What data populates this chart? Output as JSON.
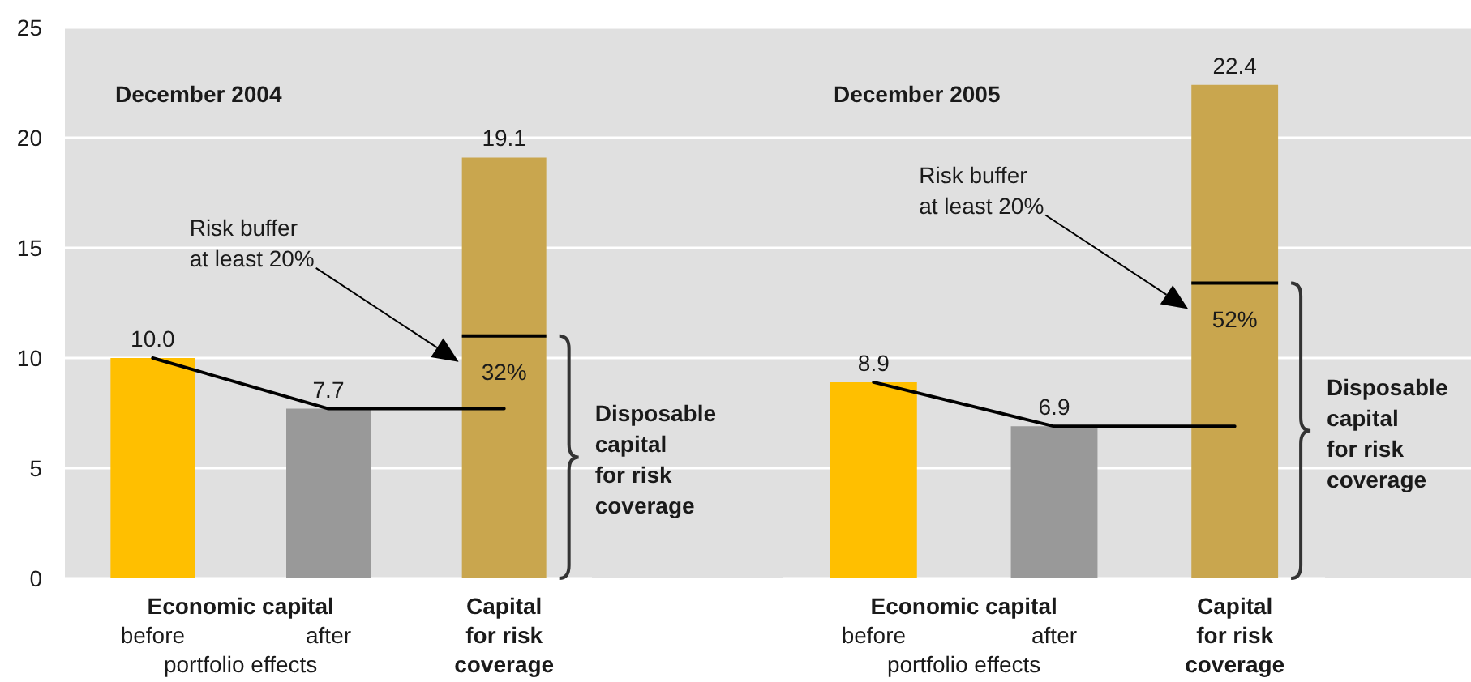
{
  "chart_data": [
    {
      "type": "bar",
      "title": "December 2004",
      "categories": [
        "before",
        "after",
        "Capital\nfor risk\ncoverage"
      ],
      "series": [
        {
          "colors": [
            "#ffbf00",
            "#999999",
            "#c9a64e"
          ],
          "values": [
            10.0,
            7.7,
            19.1
          ],
          "value_labels": [
            "10.0",
            "7.7",
            "19.1"
          ]
        },
        {
          "type": "line",
          "color": "#000000",
          "values": [
            10.0,
            7.7,
            7.7
          ]
        }
      ],
      "ylim": [
        0,
        25
      ],
      "yticks": [
        0,
        5,
        10,
        15,
        20,
        25
      ],
      "grid": "y",
      "marker": "none",
      "line_style": "solid",
      "ref_lines": [
        {
          "axis": "y",
          "value": 11.0,
          "color": "#000000"
        }
      ],
      "annotations": [
        "Economic capital",
        "portfolio effects",
        "Risk buffer\nat least 20%",
        "32%",
        "Disposable\ncapital\nfor risk\ncoverage"
      ]
    },
    {
      "type": "bar",
      "title": "December 2005",
      "categories": [
        "before",
        "after",
        "Capital\nfor risk\ncoverage"
      ],
      "series": [
        {
          "colors": [
            "#ffbf00",
            "#999999",
            "#c9a64e"
          ],
          "values": [
            8.9,
            6.9,
            22.4
          ],
          "value_labels": [
            "8.9",
            "6.9",
            "22.4"
          ]
        },
        {
          "type": "line",
          "color": "#000000",
          "values": [
            8.9,
            6.9,
            6.9
          ]
        }
      ],
      "ylim": [
        0,
        25
      ],
      "yticks": [
        0,
        5,
        10,
        15,
        20,
        25
      ],
      "grid": "y",
      "marker": "none",
      "line_style": "solid",
      "tick_labels": "x",
      "ref_lines": [
        {
          "axis": "y",
          "value": 13.4,
          "color": "#000000"
        }
      ],
      "annotations": [
        "Economic capital",
        "portfolio effects",
        "Risk buffer\nat least 20%",
        "52%",
        "Disposable\ncapital\nfor risk\ncoverage"
      ]
    }
  ]
}
